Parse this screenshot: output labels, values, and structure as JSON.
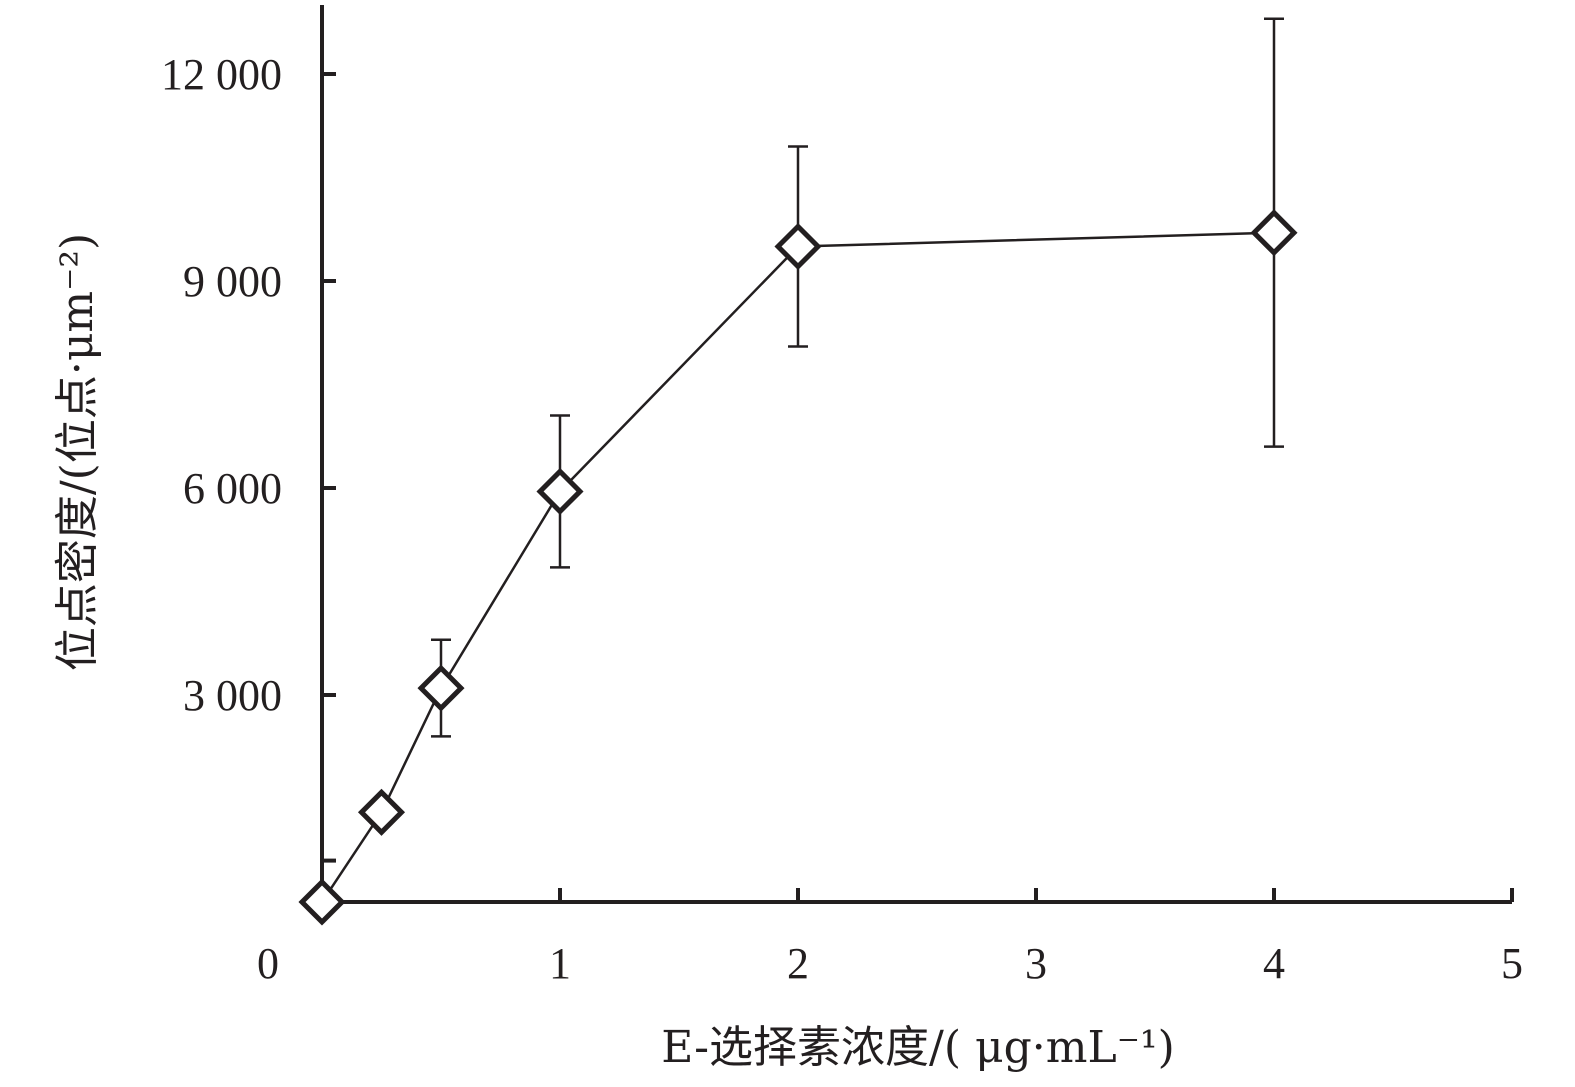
{
  "chart_data": {
    "type": "line",
    "title": "",
    "xlabel": "E-选择素浓度/( μg·mL⁻¹)",
    "ylabel": "位点密度/(位点·μm⁻²)",
    "x_ticks": [
      {
        "value": 1,
        "label": "1"
      },
      {
        "value": 2,
        "label": "2"
      },
      {
        "value": 3,
        "label": "3"
      },
      {
        "value": 4,
        "label": "4"
      },
      {
        "value": 5,
        "label": "5"
      }
    ],
    "y_ticks": [
      {
        "value": 3000,
        "label": "3 000"
      },
      {
        "value": 6000,
        "label": "6 000"
      },
      {
        "value": 9000,
        "label": "9 000"
      },
      {
        "value": 12000,
        "label": "12 000"
      }
    ],
    "origin_label": "0",
    "xlim": [
      0,
      5
    ],
    "ylim": [
      0,
      13000
    ],
    "grid": false,
    "series": [
      {
        "marker": "open-diamond",
        "points": [
          {
            "x": 0,
            "y": 0,
            "err": 0
          },
          {
            "x": 0.25,
            "y": 1300,
            "err": 0
          },
          {
            "x": 0.5,
            "y": 3100,
            "err": 700
          },
          {
            "x": 1,
            "y": 5950,
            "err": 1100
          },
          {
            "x": 2,
            "y": 9500,
            "err": 1450
          },
          {
            "x": 4,
            "y": 9700,
            "err": 3100
          }
        ]
      }
    ]
  },
  "colors": {
    "ink": "#231f20",
    "background": "#ffffff"
  }
}
